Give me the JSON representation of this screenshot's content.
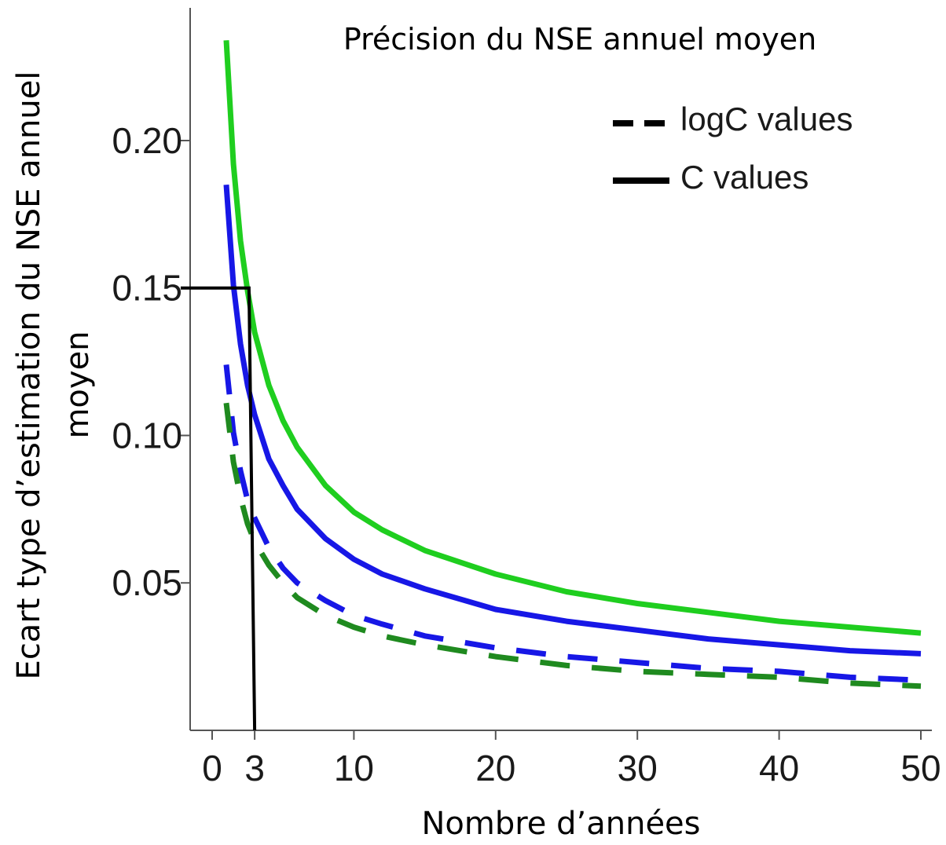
{
  "chart_data": {
    "type": "line",
    "title": "Précision du NSE annuel moyen",
    "xlabel": "Nombre d’années",
    "ylabel_line1": "Ecart type d’estimation du NSE annuel",
    "ylabel_line2": "moyen",
    "x_ticks": [
      0,
      3,
      10,
      20,
      30,
      40,
      50
    ],
    "x_tick_labels": [
      "0",
      "3",
      "10",
      "20",
      "30",
      "40",
      "50"
    ],
    "y_ticks": [
      0.05,
      0.1,
      0.15,
      0.2
    ],
    "y_tick_labels": [
      "0.05",
      "0.10",
      "0.15",
      "0.20"
    ],
    "xlim": [
      -1.5,
      50
    ],
    "ylim": [
      0.0,
      0.245
    ],
    "grid": false,
    "legend": {
      "placement": "top-right",
      "entries": [
        {
          "label": "logC values",
          "style": "dashed",
          "color": "#000000"
        },
        {
          "label": "C values",
          "style": "solid",
          "color": "#000000"
        }
      ]
    },
    "series": [
      {
        "style": "solid",
        "color": "#1fce1f",
        "x": [
          1,
          1.5,
          2,
          2.5,
          3,
          4,
          5,
          6,
          8,
          10,
          12,
          15,
          20,
          25,
          30,
          35,
          40,
          45,
          50
        ],
        "y": [
          0.234,
          0.192,
          0.166,
          0.149,
          0.135,
          0.117,
          0.105,
          0.096,
          0.083,
          0.074,
          0.068,
          0.061,
          0.053,
          0.047,
          0.043,
          0.04,
          0.037,
          0.035,
          0.033
        ]
      },
      {
        "style": "solid",
        "color": "#1717e6",
        "x": [
          1,
          1.5,
          2,
          2.5,
          3,
          4,
          5,
          6,
          8,
          10,
          12,
          15,
          20,
          25,
          30,
          35,
          40,
          45,
          50
        ],
        "y": [
          0.185,
          0.151,
          0.131,
          0.117,
          0.107,
          0.092,
          0.083,
          0.075,
          0.065,
          0.058,
          0.053,
          0.048,
          0.041,
          0.037,
          0.034,
          0.031,
          0.029,
          0.027,
          0.026
        ]
      },
      {
        "style": "dashed",
        "color": "#1717e6",
        "x": [
          1,
          1.5,
          2,
          2.5,
          3,
          4,
          5,
          6,
          8,
          10,
          12,
          15,
          20,
          25,
          30,
          35,
          40,
          45,
          50
        ],
        "y": [
          0.124,
          0.101,
          0.088,
          0.078,
          0.072,
          0.062,
          0.055,
          0.05,
          0.044,
          0.039,
          0.036,
          0.032,
          0.028,
          0.025,
          0.023,
          0.021,
          0.02,
          0.018,
          0.017
        ]
      },
      {
        "style": "dashed",
        "color": "#1f8a1f",
        "x": [
          1,
          1.5,
          2,
          2.5,
          3,
          4,
          5,
          6,
          8,
          10,
          12,
          15,
          20,
          25,
          30,
          35,
          40,
          45,
          50
        ],
        "y": [
          0.111,
          0.091,
          0.079,
          0.07,
          0.064,
          0.056,
          0.05,
          0.045,
          0.039,
          0.035,
          0.032,
          0.029,
          0.025,
          0.022,
          0.02,
          0.019,
          0.018,
          0.016,
          0.015
        ]
      }
    ],
    "annotations": {
      "reference_line": {
        "color": "#000000",
        "x": [
          -1.5,
          2.6,
          3.0
        ],
        "y": [
          0.15,
          0.15,
          0.0
        ]
      }
    }
  }
}
